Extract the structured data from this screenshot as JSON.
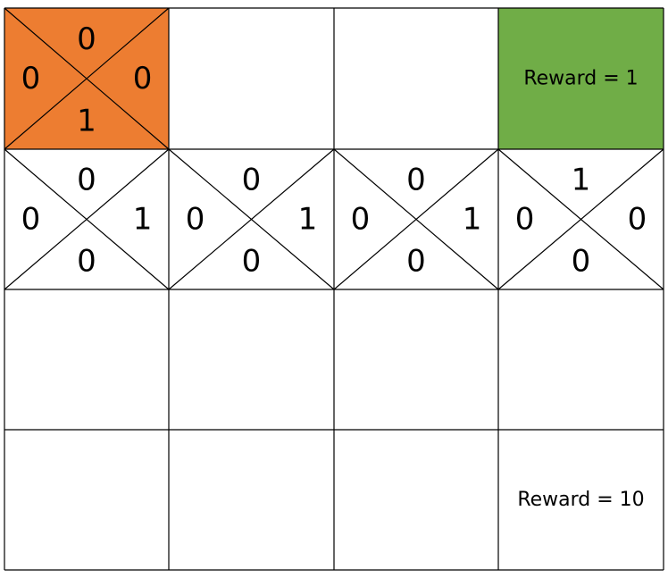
{
  "grid": {
    "rows": 4,
    "cols": 4,
    "line_color": "#000000",
    "background": "#ffffff"
  },
  "cells": [
    {
      "row": 0,
      "col": 0,
      "fill": "#ED7D31",
      "q": {
        "up": "0",
        "left": "0",
        "right": "0",
        "down": "1"
      }
    },
    {
      "row": 0,
      "col": 3,
      "fill": "#70AD47",
      "reward_label": "Reward  =  1"
    },
    {
      "row": 1,
      "col": 0,
      "fill": "#ffffff",
      "q": {
        "up": "0",
        "left": "0",
        "right": "1",
        "down": "0"
      }
    },
    {
      "row": 1,
      "col": 1,
      "fill": "#ffffff",
      "q": {
        "up": "0",
        "left": "0",
        "right": "1",
        "down": "0"
      }
    },
    {
      "row": 1,
      "col": 2,
      "fill": "#ffffff",
      "q": {
        "up": "0",
        "left": "0",
        "right": "1",
        "down": "0"
      }
    },
    {
      "row": 1,
      "col": 3,
      "fill": "#ffffff",
      "q": {
        "up": "1",
        "left": "0",
        "right": "0",
        "down": "0"
      }
    },
    {
      "row": 3,
      "col": 3,
      "fill": "#ffffff",
      "reward_label": "Reward  =  10"
    }
  ]
}
